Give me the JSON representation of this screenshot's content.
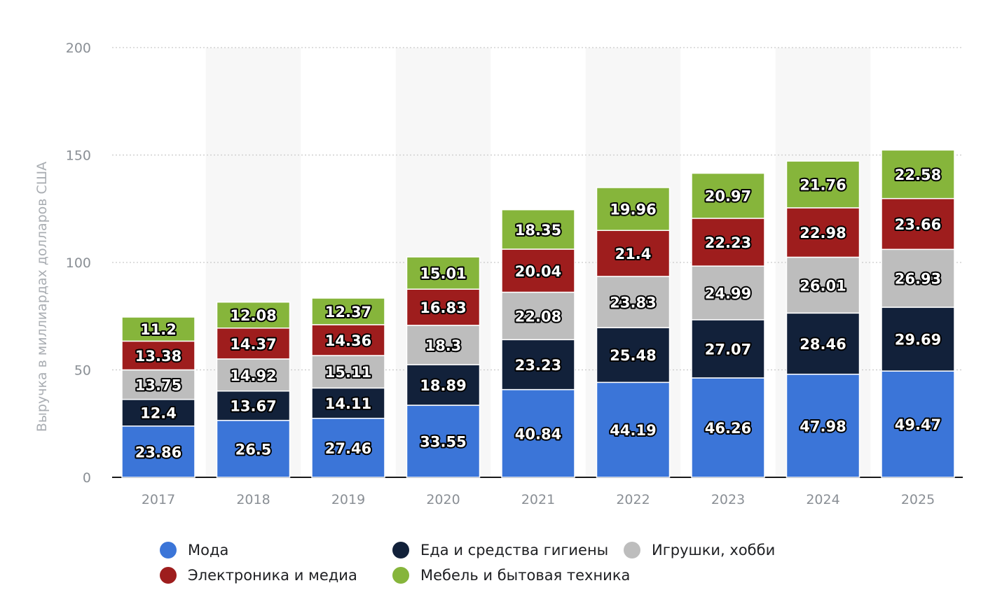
{
  "chart_data": {
    "type": "bar",
    "stacked": true,
    "title": "",
    "xlabel": "",
    "ylabel": "Выручка в миллиардах долларов США",
    "ylim": [
      0,
      200
    ],
    "yticks": [
      "0",
      "50",
      "100",
      "150",
      "200"
    ],
    "grid": true,
    "legend_position": "bottom",
    "categories": [
      "2017",
      "2018",
      "2019",
      "2020",
      "2021",
      "2022",
      "2023",
      "2024",
      "2025"
    ],
    "series": [
      {
        "name": "Мода",
        "color": "#3b75d8",
        "values": [
          23.86,
          26.5,
          27.46,
          33.55,
          40.84,
          44.19,
          46.26,
          47.98,
          49.47
        ]
      },
      {
        "name": "Еда и средства гигиены",
        "color": "#12213a",
        "values": [
          12.4,
          13.67,
          14.11,
          18.89,
          23.23,
          25.48,
          27.07,
          28.46,
          29.69
        ]
      },
      {
        "name": "Игрушки, хобби",
        "color": "#bdbdbd",
        "values": [
          13.75,
          14.92,
          15.11,
          18.3,
          22.08,
          23.83,
          24.99,
          26.01,
          26.93
        ]
      },
      {
        "name": "Электроника и медиа",
        "color": "#9e1d1d",
        "values": [
          13.38,
          14.37,
          14.36,
          16.83,
          20.04,
          21.4,
          22.23,
          22.98,
          23.66
        ]
      },
      {
        "name": "Мебель и бытовая техника",
        "color": "#86b53b",
        "values": [
          11.2,
          12.08,
          12.37,
          15.01,
          18.35,
          19.96,
          20.97,
          21.76,
          22.58
        ]
      }
    ],
    "legend_order": [
      0,
      1,
      2,
      3,
      4
    ]
  }
}
